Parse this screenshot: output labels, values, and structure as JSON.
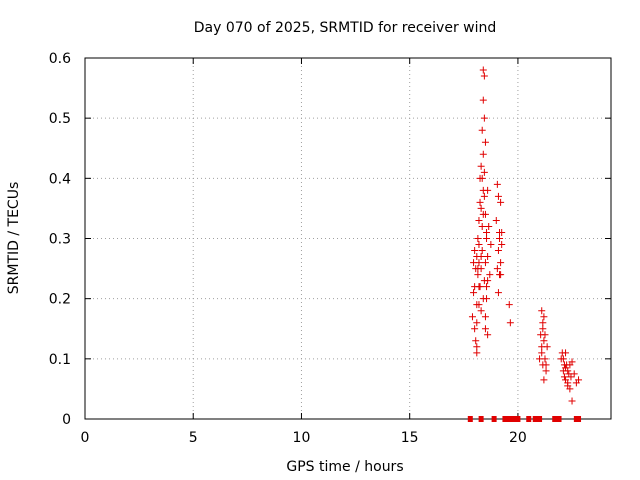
{
  "chart_data": {
    "type": "scatter",
    "title": "Day 070 of 2025, SRMTID for receiver wind",
    "xlabel": "GPS time / hours",
    "ylabel": "SRMTID / TECUs",
    "xlim": [
      0,
      24.3
    ],
    "ylim": [
      0,
      0.6
    ],
    "xticks": [
      0,
      5,
      10,
      15,
      20
    ],
    "xtick_labels": [
      "0",
      "5",
      "10",
      "15",
      "20"
    ],
    "yticks": [
      0,
      0.1,
      0.2,
      0.3,
      0.4,
      0.5,
      0.6
    ],
    "ytick_labels": [
      "0",
      "0.1",
      "0.2",
      "0.3",
      "0.4",
      "0.5",
      "0.6"
    ],
    "grid": true,
    "marker": "+",
    "color": "#e00000",
    "series": [
      {
        "name": "SRMTID",
        "x": [
          17.9,
          17.95,
          18.0,
          18.0,
          18.05,
          18.05,
          18.1,
          18.1,
          18.1,
          18.15,
          18.15,
          18.2,
          18.2,
          18.2,
          18.25,
          18.25,
          18.25,
          18.3,
          18.3,
          18.3,
          18.35,
          18.35,
          18.35,
          18.4,
          18.4,
          18.4,
          18.4,
          18.45,
          18.45,
          18.45,
          18.45,
          18.5,
          18.5,
          18.5,
          18.55,
          18.55,
          18.6,
          18.6,
          18.6,
          18.65,
          18.7,
          18.75,
          17.95,
          18.0,
          18.1,
          18.15,
          18.2,
          18.3,
          18.4,
          18.5,
          18.55,
          18.6,
          18.1,
          18.2,
          18.3,
          18.45,
          18.5,
          18.55,
          18.35,
          18.4,
          19.0,
          19.05,
          19.05,
          19.1,
          19.1,
          19.15,
          19.15,
          19.2,
          19.2,
          19.25,
          19.25,
          19.1,
          19.15,
          19.2,
          19.6,
          19.65,
          21.0,
          21.05,
          21.1,
          21.1,
          21.15,
          21.15,
          21.2,
          21.2,
          21.25,
          21.25,
          21.3,
          21.35,
          21.1,
          21.2,
          21.3,
          21.15,
          22.0,
          22.05,
          22.1,
          22.1,
          22.15,
          22.15,
          22.2,
          22.2,
          22.25,
          22.3,
          22.3,
          22.35,
          22.4,
          22.4,
          22.45,
          22.5,
          22.6,
          22.7,
          22.8,
          22.2,
          22.3,
          22.5,
          17.8,
          18.3,
          18.9,
          19.4,
          19.6,
          19.8,
          20.0,
          20.5,
          20.8,
          21.0,
          21.7,
          21.9,
          22.7,
          22.8
        ],
        "y": [
          0.17,
          0.26,
          0.28,
          0.22,
          0.25,
          0.13,
          0.27,
          0.11,
          0.16,
          0.24,
          0.3,
          0.26,
          0.33,
          0.19,
          0.36,
          0.22,
          0.4,
          0.25,
          0.42,
          0.18,
          0.48,
          0.28,
          0.32,
          0.58,
          0.53,
          0.44,
          0.2,
          0.57,
          0.5,
          0.37,
          0.23,
          0.34,
          0.26,
          0.15,
          0.22,
          0.31,
          0.38,
          0.27,
          0.14,
          0.32,
          0.24,
          0.29,
          0.21,
          0.15,
          0.12,
          0.25,
          0.29,
          0.35,
          0.38,
          0.46,
          0.2,
          0.23,
          0.19,
          0.22,
          0.27,
          0.41,
          0.17,
          0.3,
          0.4,
          0.34,
          0.33,
          0.39,
          0.25,
          0.37,
          0.28,
          0.31,
          0.24,
          0.36,
          0.26,
          0.31,
          0.29,
          0.21,
          0.3,
          0.24,
          0.19,
          0.16,
          0.1,
          0.14,
          0.18,
          0.12,
          0.16,
          0.09,
          0.13,
          0.17,
          0.1,
          0.14,
          0.09,
          0.12,
          0.11,
          0.065,
          0.08,
          0.15,
          0.1,
          0.11,
          0.08,
          0.1,
          0.07,
          0.09,
          0.11,
          0.065,
          0.09,
          0.06,
          0.08,
          0.075,
          0.05,
          0.09,
          0.07,
          0.095,
          0.075,
          0.06,
          0.065,
          0.085,
          0.055,
          0.03,
          0,
          0,
          0,
          0,
          0,
          0,
          0,
          0,
          0,
          0,
          0,
          0,
          0,
          0
        ]
      }
    ]
  }
}
